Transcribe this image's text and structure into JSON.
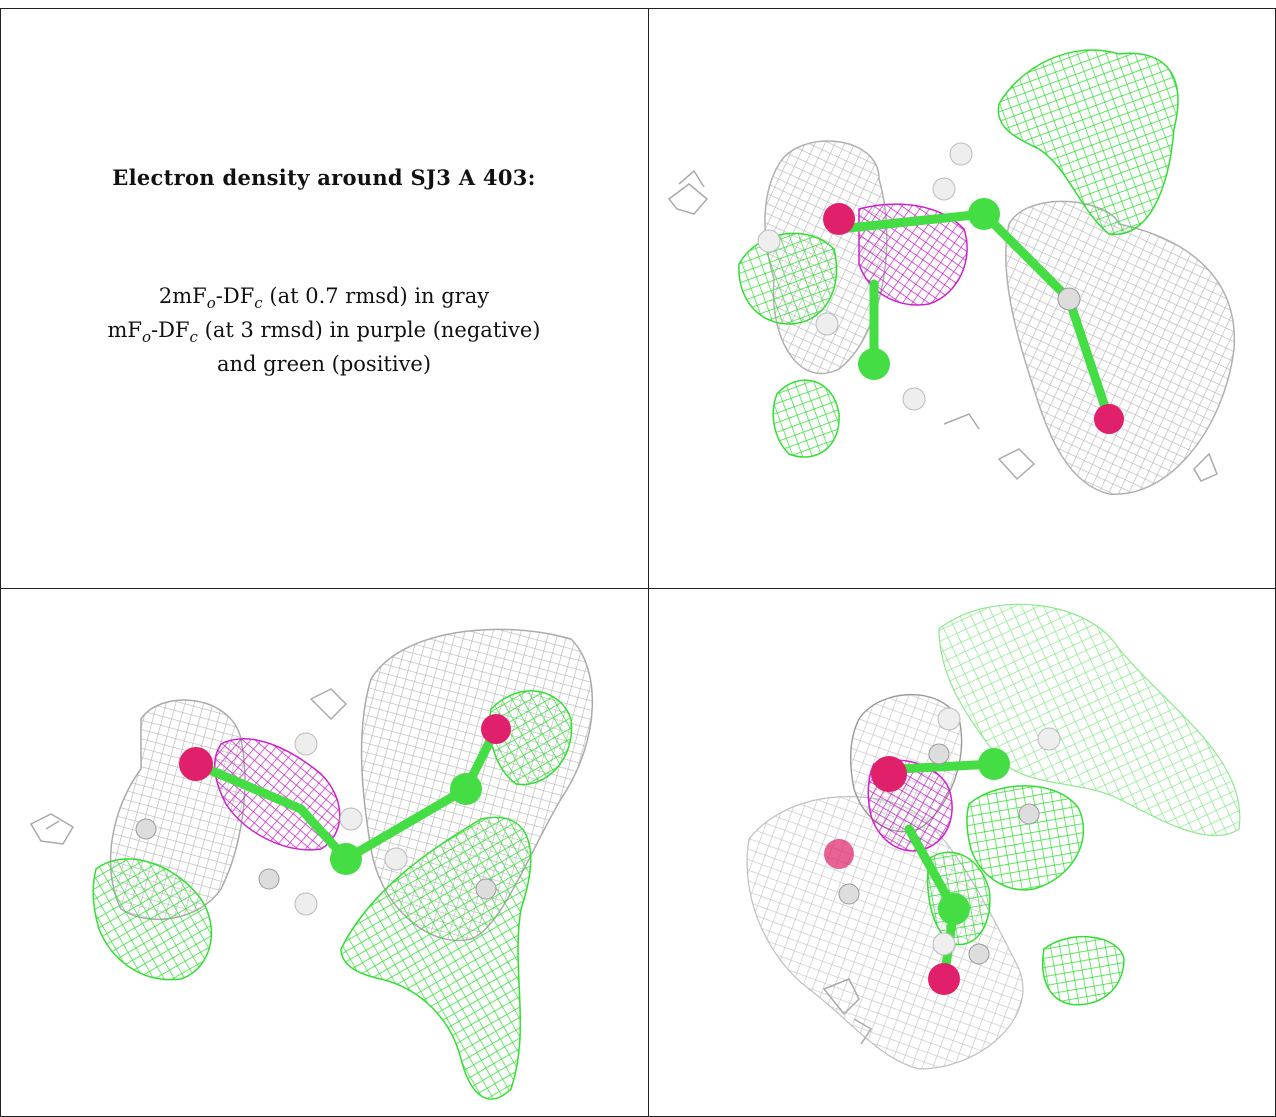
{
  "caption": {
    "title": "Electron density around SJ3 A 403:",
    "line1_prefix": "2mF",
    "line1_mid": "-DF",
    "line1_suffix": " (at 0.7 rmsd) in gray",
    "line2_prefix": "mF",
    "line2_mid": "-DF",
    "line2_suffix": " (at 3 rmsd) in purple (negative)",
    "line3": "and green (positive)",
    "sub_o": "o",
    "sub_c": "c"
  },
  "colors": {
    "gray_mesh": "#b8b8b8",
    "green_mesh": "#33dd33",
    "purple_mesh": "#cc22cc",
    "oxygen": "#e0206a",
    "carbon": "#44dd44",
    "hydrogen": "#eeeeee",
    "border": "#222222"
  },
  "panels": [
    {
      "name": "view-top-right"
    },
    {
      "name": "view-bottom-left"
    },
    {
      "name": "view-bottom-right"
    }
  ]
}
